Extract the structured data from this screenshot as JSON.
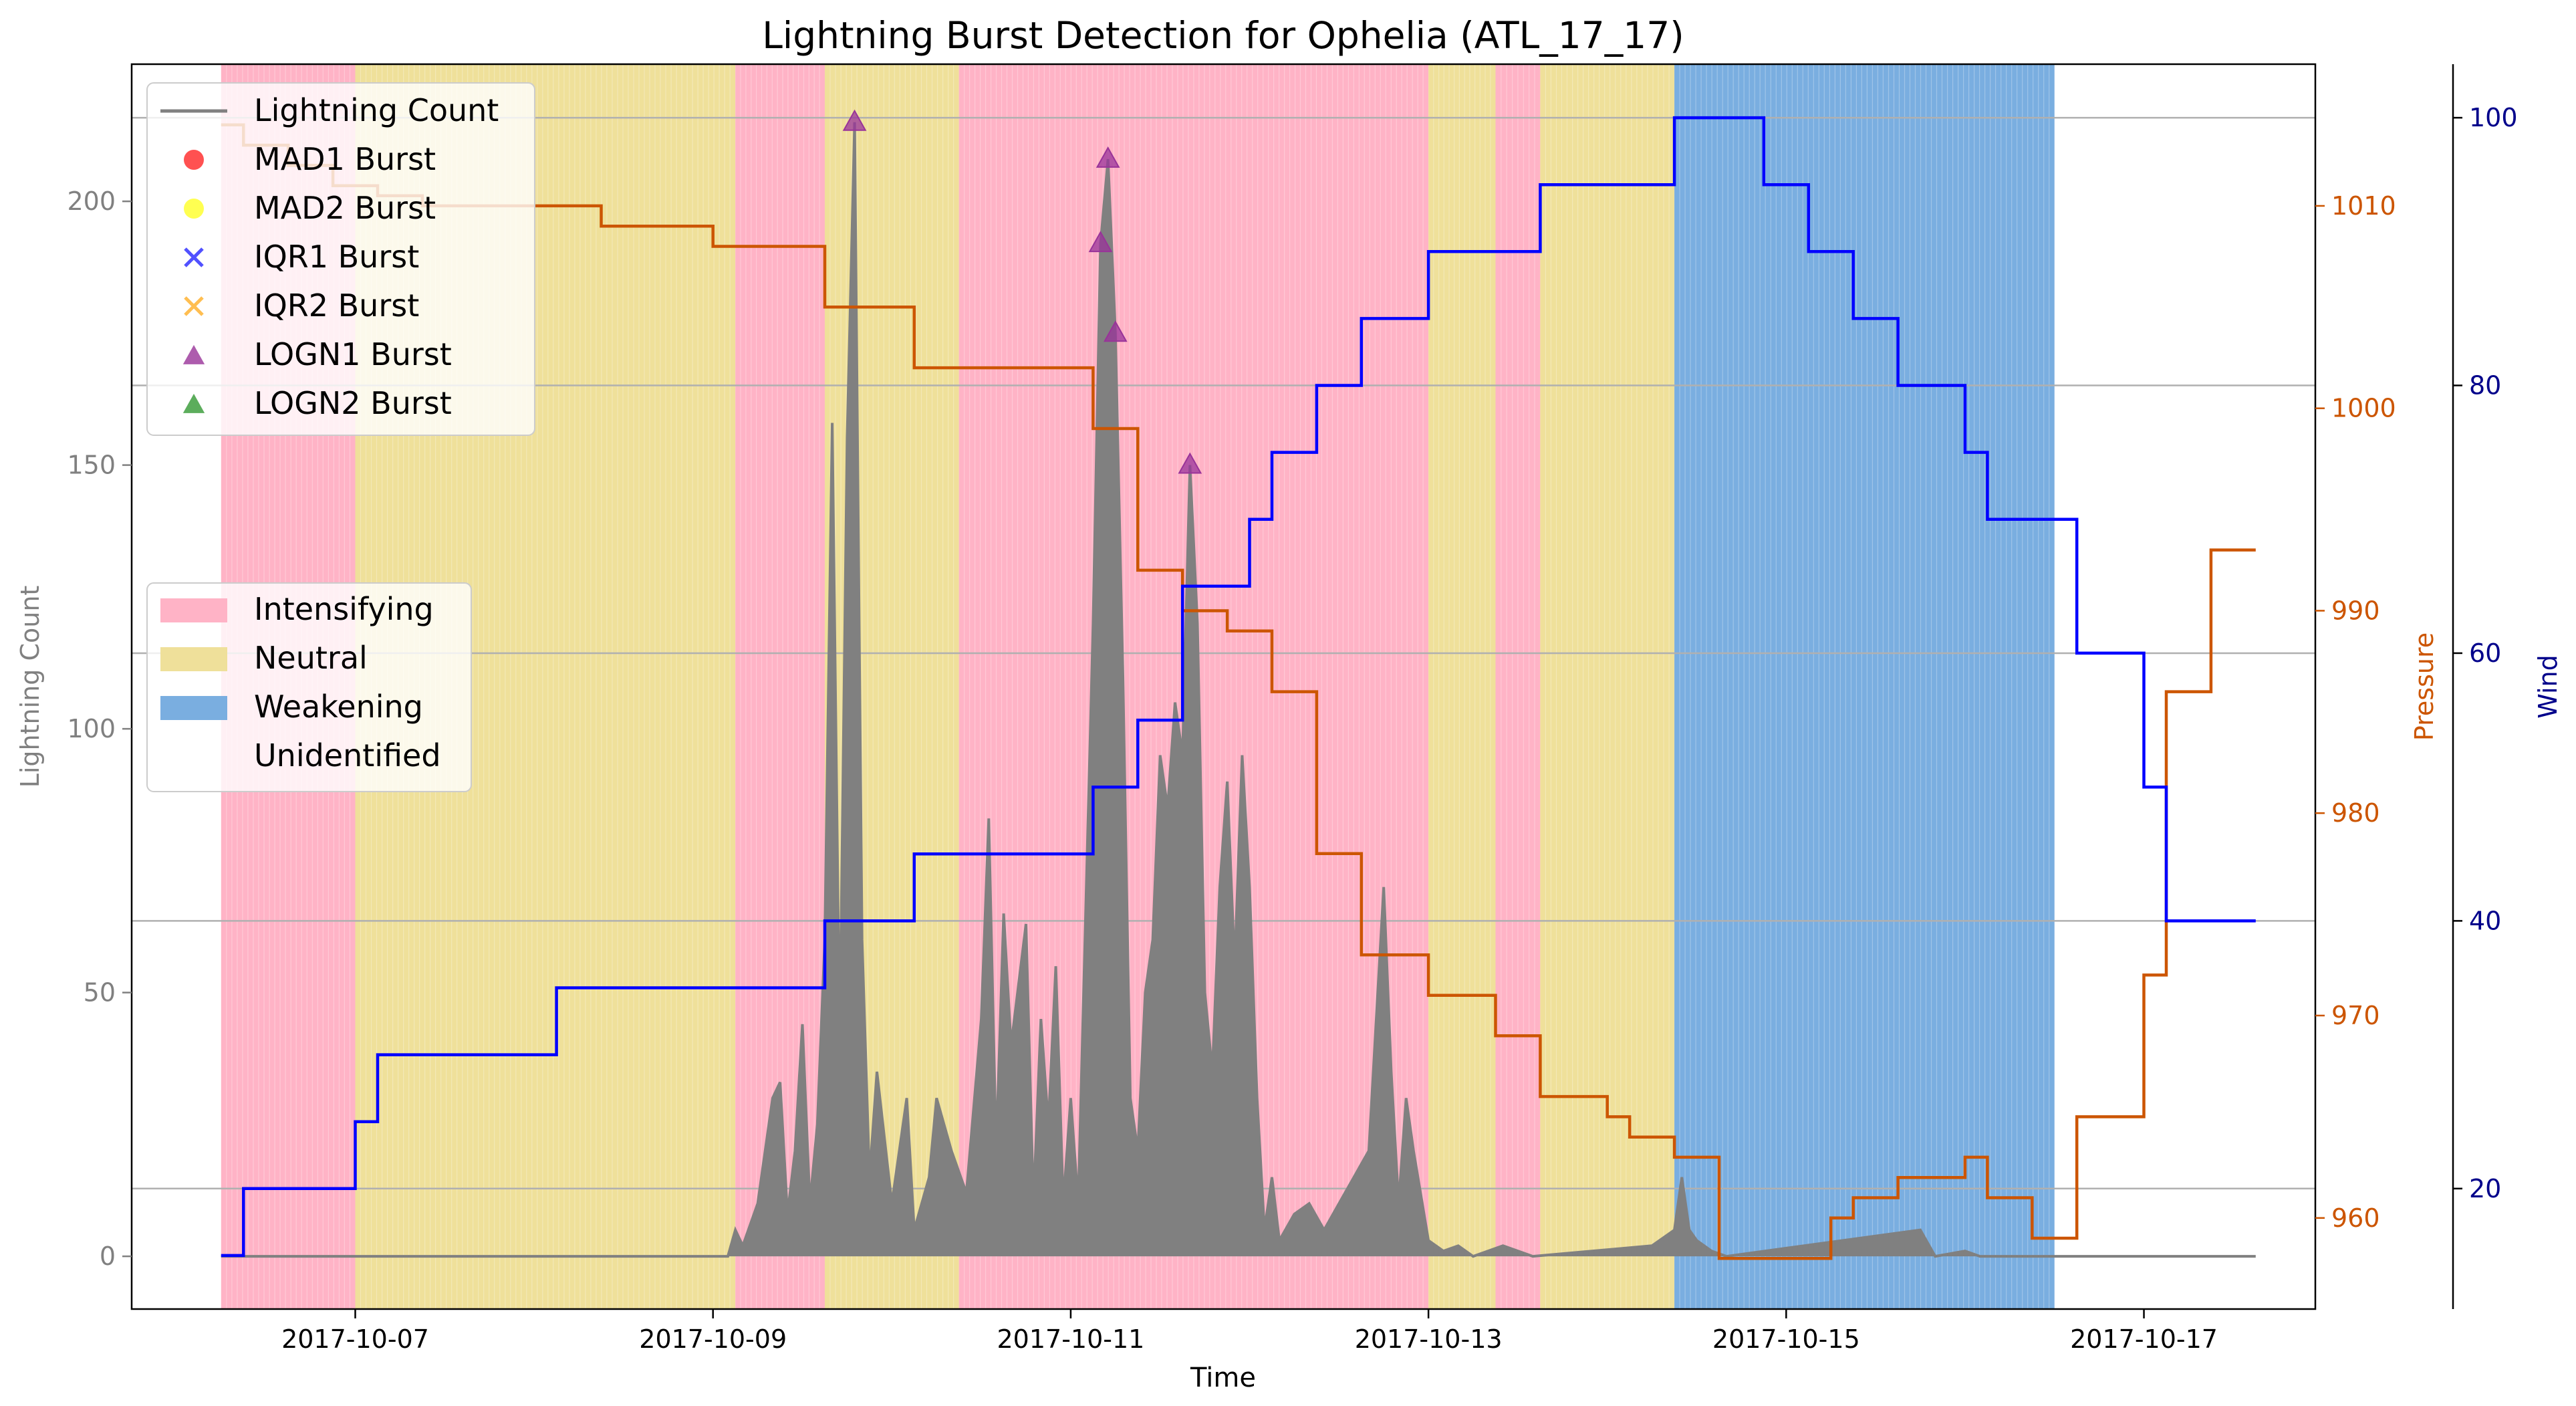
{
  "chart_data": {
    "type": "line",
    "title": "Lightning Burst Detection for Ophelia (ATL_17_17)",
    "xlabel": "Time",
    "ylabel": "Lightning Count",
    "y2label": "Pressure",
    "y3label": "Wind",
    "xlim": [
      "2017-10-05T18:00",
      "2017-10-17T23:00"
    ],
    "ylim": [
      -10,
      226
    ],
    "y2lim": [
      955.5,
      1017
    ],
    "y3lim": [
      11,
      104
    ],
    "x_ticks": [
      "2017-10-07",
      "2017-10-09",
      "2017-10-11",
      "2017-10-13",
      "2017-10-15",
      "2017-10-17"
    ],
    "y_ticks": [
      0,
      50,
      100,
      150,
      200
    ],
    "y2_ticks": [
      960,
      970,
      980,
      990,
      1000,
      1010
    ],
    "y3_ticks": [
      20,
      40,
      60,
      80,
      100
    ],
    "grid": "horizontal lines at wind ticks",
    "colors": {
      "lightning": "#808080",
      "pressure": "#cc5500",
      "wind": "#0000ff",
      "intensifying": "#ffb3c6",
      "neutral": "#efe09a",
      "weakening": "#7aaee0",
      "mad1": "#ff3333",
      "mad2": "#ffff33",
      "iqr1": "#3333ff",
      "iqr2": "#ffb333",
      "logn1": "#993399",
      "logn2": "#339933"
    },
    "legend_top": [
      "Lightning Count",
      "MAD1 Burst",
      "MAD2 Burst",
      "IQR1 Burst",
      "IQR2 Burst",
      "LOGN1 Burst",
      "LOGN2 Burst"
    ],
    "legend_mid": [
      "Intensifying",
      "Neutral",
      "Weakening",
      "Unidentified"
    ],
    "legend_top_placement": "upper-left",
    "legend_mid_placement": "center-left",
    "regions": [
      {
        "start": "2017-10-06T06:00",
        "end": "2017-10-07T00:00",
        "label": "Intensifying"
      },
      {
        "start": "2017-10-07T00:00",
        "end": "2017-10-09T03:00",
        "label": "Neutral"
      },
      {
        "start": "2017-10-09T03:00",
        "end": "2017-10-09T15:00",
        "label": "Intensifying"
      },
      {
        "start": "2017-10-09T15:00",
        "end": "2017-10-10T09:00",
        "label": "Neutral"
      },
      {
        "start": "2017-10-10T09:00",
        "end": "2017-10-13T00:00",
        "label": "Intensifying"
      },
      {
        "start": "2017-10-13T00:00",
        "end": "2017-10-13T09:00",
        "label": "Neutral"
      },
      {
        "start": "2017-10-13T09:00",
        "end": "2017-10-13T15:00",
        "label": "Intensifying"
      },
      {
        "start": "2017-10-13T15:00",
        "end": "2017-10-14T09:00",
        "label": "Neutral"
      },
      {
        "start": "2017-10-14T09:00",
        "end": "2017-10-16T12:00",
        "label": "Weakening"
      }
    ],
    "pressure_series": {
      "name": "Pressure",
      "points": [
        [
          "2017-10-06T06:00",
          1014
        ],
        [
          "2017-10-06T09:00",
          1013
        ],
        [
          "2017-10-06T15:00",
          1012
        ],
        [
          "2017-10-06T21:00",
          1011
        ],
        [
          "2017-10-07T03:00",
          1010.5
        ],
        [
          "2017-10-07T09:00",
          1010
        ],
        [
          "2017-10-08T09:00",
          1009
        ],
        [
          "2017-10-09T00:00",
          1008
        ],
        [
          "2017-10-09T15:00",
          1005
        ],
        [
          "2017-10-10T03:00",
          1002
        ],
        [
          "2017-10-11T03:00",
          999
        ],
        [
          "2017-10-11T09:00",
          992
        ],
        [
          "2017-10-11T15:00",
          990
        ],
        [
          "2017-10-11T21:00",
          989
        ],
        [
          "2017-10-12T03:00",
          986
        ],
        [
          "2017-10-12T09:00",
          978
        ],
        [
          "2017-10-12T15:00",
          973
        ],
        [
          "2017-10-13T00:00",
          971
        ],
        [
          "2017-10-13T09:00",
          969
        ],
        [
          "2017-10-13T15:00",
          966
        ],
        [
          "2017-10-14T00:00",
          965
        ],
        [
          "2017-10-14T03:00",
          964
        ],
        [
          "2017-10-14T09:00",
          963
        ],
        [
          "2017-10-14T15:00",
          958
        ],
        [
          "2017-10-15T06:00",
          960
        ],
        [
          "2017-10-15T09:00",
          961
        ],
        [
          "2017-10-15T15:00",
          962
        ],
        [
          "2017-10-16T00:00",
          963
        ],
        [
          "2017-10-16T03:00",
          961
        ],
        [
          "2017-10-16T09:00",
          959
        ],
        [
          "2017-10-16T15:00",
          965
        ],
        [
          "2017-10-17T00:00",
          972
        ],
        [
          "2017-10-17T03:00",
          986
        ],
        [
          "2017-10-17T09:00",
          993
        ]
      ],
      "end": "2017-10-17T15:00"
    },
    "wind_series": {
      "name": "Wind",
      "points": [
        [
          "2017-10-06T06:00",
          15
        ],
        [
          "2017-10-06T09:00",
          20
        ],
        [
          "2017-10-07T00:00",
          25
        ],
        [
          "2017-10-07T03:00",
          30
        ],
        [
          "2017-10-08T03:00",
          35
        ],
        [
          "2017-10-09T15:00",
          40
        ],
        [
          "2017-10-10T03:00",
          45
        ],
        [
          "2017-10-11T03:00",
          50
        ],
        [
          "2017-10-11T09:00",
          55
        ],
        [
          "2017-10-11T15:00",
          65
        ],
        [
          "2017-10-12T00:00",
          70
        ],
        [
          "2017-10-12T03:00",
          75
        ],
        [
          "2017-10-12T09:00",
          80
        ],
        [
          "2017-10-12T15:00",
          85
        ],
        [
          "2017-10-13T00:00",
          90
        ],
        [
          "2017-10-13T15:00",
          95
        ],
        [
          "2017-10-14T09:00",
          100
        ],
        [
          "2017-10-14T21:00",
          95
        ],
        [
          "2017-10-15T03:00",
          90
        ],
        [
          "2017-10-15T09:00",
          85
        ],
        [
          "2017-10-15T15:00",
          80
        ],
        [
          "2017-10-16T00:00",
          75
        ],
        [
          "2017-10-16T03:00",
          70
        ],
        [
          "2017-10-16T15:00",
          60
        ],
        [
          "2017-10-17T00:00",
          50
        ],
        [
          "2017-10-17T03:00",
          40
        ]
      ],
      "end": "2017-10-17T15:00"
    },
    "lightning_series": {
      "name": "Lightning Count",
      "points": [
        [
          "2017-10-06T06:00",
          0
        ],
        [
          "2017-10-09T02:00",
          0
        ],
        [
          "2017-10-09T03:00",
          5
        ],
        [
          "2017-10-09T04:00",
          2
        ],
        [
          "2017-10-09T06:00",
          10
        ],
        [
          "2017-10-09T08:00",
          30
        ],
        [
          "2017-10-09T09:00",
          33
        ],
        [
          "2017-10-09T10:00",
          8
        ],
        [
          "2017-10-09T11:00",
          20
        ],
        [
          "2017-10-09T12:00",
          44
        ],
        [
          "2017-10-09T13:00",
          10
        ],
        [
          "2017-10-09T14:00",
          25
        ],
        [
          "2017-10-09T15:00",
          60
        ],
        [
          "2017-10-09T16:00",
          158
        ],
        [
          "2017-10-09T17:00",
          40
        ],
        [
          "2017-10-09T18:00",
          155
        ],
        [
          "2017-10-09T19:00",
          215
        ],
        [
          "2017-10-09T20:00",
          60
        ],
        [
          "2017-10-09T21:00",
          15
        ],
        [
          "2017-10-09T22:00",
          35
        ],
        [
          "2017-10-10T00:00",
          10
        ],
        [
          "2017-10-10T02:00",
          30
        ],
        [
          "2017-10-10T03:00",
          5
        ],
        [
          "2017-10-10T05:00",
          15
        ],
        [
          "2017-10-10T06:00",
          30
        ],
        [
          "2017-10-10T08:00",
          20
        ],
        [
          "2017-10-10T10:00",
          12
        ],
        [
          "2017-10-10T12:00",
          45
        ],
        [
          "2017-10-10T13:00",
          83
        ],
        [
          "2017-10-10T14:00",
          20
        ],
        [
          "2017-10-10T15:00",
          65
        ],
        [
          "2017-10-10T16:00",
          40
        ],
        [
          "2017-10-10T18:00",
          63
        ],
        [
          "2017-10-10T19:00",
          10
        ],
        [
          "2017-10-10T20:00",
          45
        ],
        [
          "2017-10-10T21:00",
          25
        ],
        [
          "2017-10-10T22:00",
          55
        ],
        [
          "2017-10-10T23:00",
          10
        ],
        [
          "2017-10-11T00:00",
          30
        ],
        [
          "2017-10-11T01:00",
          10
        ],
        [
          "2017-10-11T03:00",
          120
        ],
        [
          "2017-10-11T04:00",
          192
        ],
        [
          "2017-10-11T05:00",
          208
        ],
        [
          "2017-10-11T06:00",
          175
        ],
        [
          "2017-10-11T07:00",
          110
        ],
        [
          "2017-10-11T08:00",
          30
        ],
        [
          "2017-10-11T09:00",
          20
        ],
        [
          "2017-10-11T10:00",
          50
        ],
        [
          "2017-10-11T11:00",
          60
        ],
        [
          "2017-10-11T12:00",
          95
        ],
        [
          "2017-10-11T13:00",
          85
        ],
        [
          "2017-10-11T14:00",
          105
        ],
        [
          "2017-10-11T15:00",
          95
        ],
        [
          "2017-10-11T16:00",
          150
        ],
        [
          "2017-10-11T17:00",
          120
        ],
        [
          "2017-10-11T18:00",
          50
        ],
        [
          "2017-10-11T19:00",
          35
        ],
        [
          "2017-10-11T20:00",
          70
        ],
        [
          "2017-10-11T21:00",
          90
        ],
        [
          "2017-10-11T22:00",
          55
        ],
        [
          "2017-10-11T23:00",
          95
        ],
        [
          "2017-10-12T00:00",
          70
        ],
        [
          "2017-10-12T01:00",
          30
        ],
        [
          "2017-10-12T02:00",
          5
        ],
        [
          "2017-10-12T03:00",
          15
        ],
        [
          "2017-10-12T04:00",
          3
        ],
        [
          "2017-10-12T06:00",
          8
        ],
        [
          "2017-10-12T08:00",
          10
        ],
        [
          "2017-10-12T10:00",
          5
        ],
        [
          "2017-10-12T12:00",
          10
        ],
        [
          "2017-10-12T14:00",
          15
        ],
        [
          "2017-10-12T16:00",
          20
        ],
        [
          "2017-10-12T18:00",
          70
        ],
        [
          "2017-10-12T19:00",
          35
        ],
        [
          "2017-10-12T20:00",
          10
        ],
        [
          "2017-10-12T21:00",
          30
        ],
        [
          "2017-10-12T22:00",
          20
        ],
        [
          "2017-10-13T00:00",
          3
        ],
        [
          "2017-10-13T02:00",
          1
        ],
        [
          "2017-10-13T04:00",
          2
        ],
        [
          "2017-10-13T06:00",
          0
        ],
        [
          "2017-10-13T10:00",
          2
        ],
        [
          "2017-10-13T14:00",
          0
        ],
        [
          "2017-10-14T06:00",
          2
        ],
        [
          "2017-10-14T09:00",
          5
        ],
        [
          "2017-10-14T10:00",
          15
        ],
        [
          "2017-10-14T11:00",
          5
        ],
        [
          "2017-10-14T12:00",
          3
        ],
        [
          "2017-10-14T14:00",
          1
        ],
        [
          "2017-10-14T16:00",
          0
        ],
        [
          "2017-10-15T18:00",
          5
        ],
        [
          "2017-10-15T20:00",
          0
        ],
        [
          "2017-10-16T00:00",
          1
        ],
        [
          "2017-10-16T02:00",
          0
        ],
        [
          "2017-10-17T15:00",
          0
        ]
      ]
    },
    "logn1_bursts": [
      [
        "2017-10-09T19:00",
        215
      ],
      [
        "2017-10-11T04:00",
        192
      ],
      [
        "2017-10-11T05:00",
        208
      ],
      [
        "2017-10-11T06:00",
        175
      ],
      [
        "2017-10-11T16:00",
        150
      ]
    ]
  }
}
